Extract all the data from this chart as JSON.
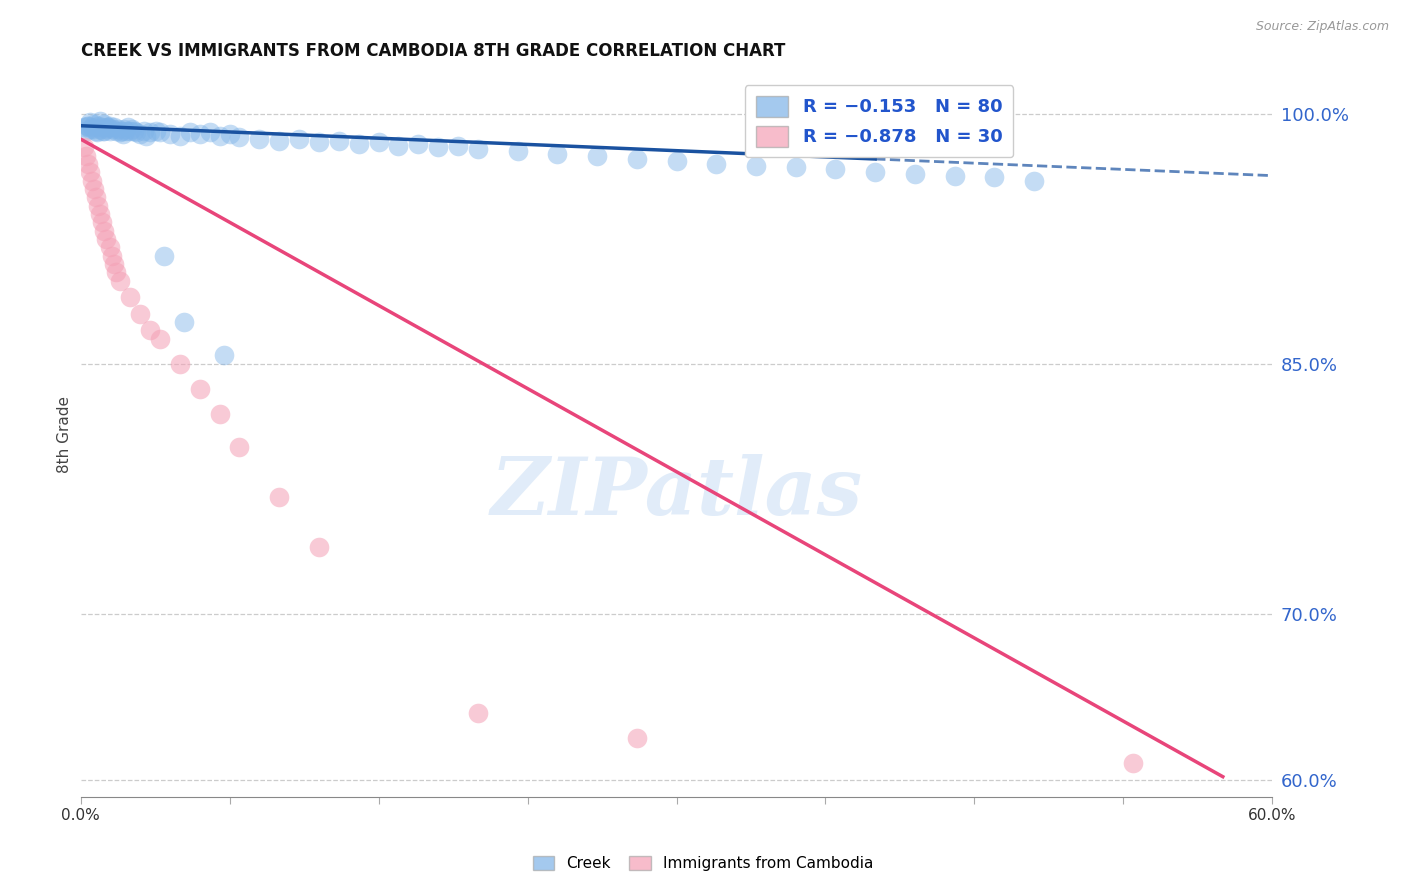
{
  "title": "CREEK VS IMMIGRANTS FROM CAMBODIA 8TH GRADE CORRELATION CHART",
  "source": "Source: ZipAtlas.com",
  "ylabel": "8th Grade",
  "watermark_text": "ZIPatlas",
  "creek_color": "#7EB3E8",
  "cambodia_color": "#F4A0B5",
  "trend_creek_color": "#1A52A0",
  "trend_cambodia_color": "#E8457A",
  "xlim": [
    0.0,
    60.0
  ],
  "ylim": [
    59.0,
    102.5
  ],
  "ytick_positions": [
    60.0,
    70.0,
    85.0,
    100.0
  ],
  "ytick_labels": [
    "60.0%",
    "70.0%",
    "85.0%",
    "100.0%"
  ],
  "xtick_positions": [
    0.0,
    60.0
  ],
  "xtick_labels": [
    "0.0%",
    "60.0%"
  ],
  "legend_labels": [
    "R = −0.153   N = 80",
    "R = −0.878   N = 30"
  ],
  "bottom_legend_labels": [
    "Creek",
    "Immigrants from Cambodia"
  ],
  "creek_x": [
    0.2,
    0.3,
    0.4,
    0.5,
    0.5,
    0.6,
    0.7,
    0.8,
    0.9,
    1.0,
    1.0,
    1.1,
    1.2,
    1.2,
    1.3,
    1.4,
    1.5,
    1.5,
    1.6,
    1.7,
    1.8,
    1.9,
    2.0,
    2.1,
    2.2,
    2.3,
    2.4,
    2.5,
    2.6,
    2.7,
    2.8,
    3.0,
    3.2,
    3.5,
    3.8,
    4.0,
    4.5,
    5.0,
    5.5,
    6.0,
    6.5,
    7.0,
    7.5,
    8.0,
    9.0,
    10.0,
    11.0,
    12.0,
    13.0,
    14.0,
    15.0,
    16.0,
    17.0,
    18.0,
    19.0,
    20.0,
    22.0,
    24.0,
    26.0,
    28.0,
    30.0,
    32.0,
    34.0,
    36.0,
    38.0,
    40.0,
    42.0,
    44.0,
    46.0,
    48.0,
    0.35,
    0.65,
    0.85,
    1.15,
    1.35,
    2.15,
    3.3,
    4.2,
    5.2,
    7.2
  ],
  "creek_y": [
    99.2,
    99.0,
    99.3,
    99.1,
    99.5,
    99.2,
    99.4,
    99.0,
    99.3,
    99.1,
    99.6,
    99.2,
    99.4,
    99.0,
    99.1,
    99.2,
    99.3,
    99.0,
    99.1,
    99.2,
    99.0,
    99.1,
    98.9,
    99.0,
    99.1,
    99.0,
    99.2,
    99.0,
    99.1,
    99.0,
    98.9,
    98.8,
    99.0,
    98.9,
    99.0,
    98.9,
    98.8,
    98.7,
    98.9,
    98.8,
    98.9,
    98.7,
    98.8,
    98.6,
    98.5,
    98.4,
    98.5,
    98.3,
    98.4,
    98.2,
    98.3,
    98.1,
    98.2,
    98.0,
    98.1,
    97.9,
    97.8,
    97.6,
    97.5,
    97.3,
    97.2,
    97.0,
    96.9,
    96.8,
    96.7,
    96.5,
    96.4,
    96.3,
    96.2,
    96.0,
    99.3,
    99.1,
    98.9,
    99.0,
    99.2,
    98.8,
    98.7,
    91.5,
    87.5,
    85.5
  ],
  "cambodia_x": [
    0.2,
    0.3,
    0.4,
    0.5,
    0.6,
    0.7,
    0.8,
    0.9,
    1.0,
    1.1,
    1.2,
    1.3,
    1.5,
    1.6,
    1.7,
    1.8,
    2.0,
    2.5,
    3.0,
    3.5,
    4.0,
    5.0,
    6.0,
    7.0,
    8.0,
    10.0,
    12.0,
    20.0,
    28.0,
    53.0
  ],
  "cambodia_y": [
    98.0,
    97.5,
    97.0,
    96.5,
    96.0,
    95.5,
    95.0,
    94.5,
    94.0,
    93.5,
    93.0,
    92.5,
    92.0,
    91.5,
    91.0,
    90.5,
    90.0,
    89.0,
    88.0,
    87.0,
    86.5,
    85.0,
    83.5,
    82.0,
    80.0,
    77.0,
    74.0,
    64.0,
    62.5,
    61.0
  ],
  "creek_trend_x": [
    0.0,
    60.0
  ],
  "creek_trend_y": [
    99.3,
    96.3
  ],
  "cambodia_trend_x": [
    0.0,
    57.5
  ],
  "cambodia_trend_y": [
    98.5,
    60.2
  ]
}
